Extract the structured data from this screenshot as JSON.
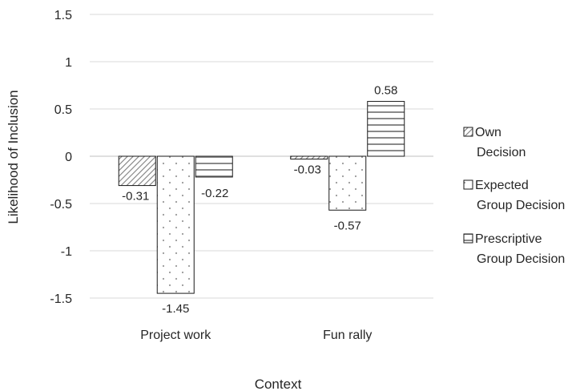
{
  "chart_data": {
    "type": "bar",
    "categories": [
      "Project work",
      "Fun rally"
    ],
    "series": [
      {
        "name": "Own Decision",
        "values": [
          -0.31,
          -0.03
        ],
        "pattern": "diagonal"
      },
      {
        "name": "Expected Group Decision",
        "values": [
          -1.45,
          -0.57
        ],
        "pattern": "dots"
      },
      {
        "name": "Prescriptive Group Decision",
        "values": [
          -0.22,
          0.58
        ],
        "pattern": "horizontal"
      }
    ],
    "data_labels": [
      [
        "-0.31",
        "-0.03"
      ],
      [
        "-1.45",
        "-0.57"
      ],
      [
        "-0.22",
        "0.58"
      ]
    ],
    "title": "",
    "xlabel": "Context",
    "ylabel": "Likelihood of Inclusion",
    "ylim": [
      -1.5,
      1.5
    ],
    "yticks": [
      1.5,
      1,
      0.5,
      0,
      -0.5,
      -1,
      -1.5
    ],
    "ytick_labels": [
      "1.5",
      "1",
      "0.5",
      "0",
      "-0.5",
      "-1",
      "-1.5"
    ],
    "grid": true,
    "legend_position": "right",
    "legend_lines": [
      [
        "Own",
        "Decision"
      ],
      [
        "Expected",
        "Group Decision"
      ],
      [
        "Prescriptive",
        "Group Decision"
      ]
    ],
    "colors": {
      "grid": "#d9d9d9",
      "bar_stroke": "#1a1a1a",
      "text": "#262626"
    }
  }
}
